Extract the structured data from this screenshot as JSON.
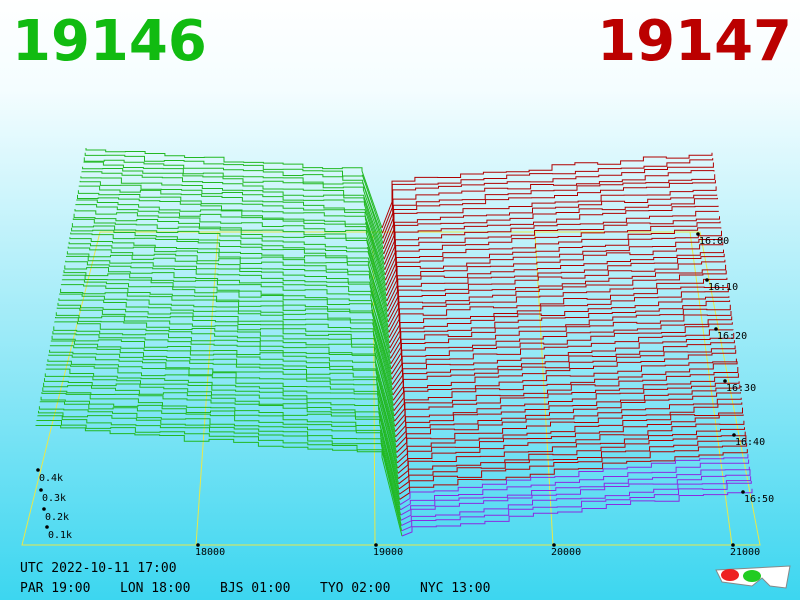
{
  "header": {
    "bid": "19146",
    "ask": "19147"
  },
  "price_axis": {
    "labels": [
      "18000",
      "19000",
      "20000",
      "21000"
    ]
  },
  "depth_axis": {
    "labels": [
      "0.4k",
      "0.3k",
      "0.2k",
      "0.1k"
    ]
  },
  "time_axis": {
    "labels": [
      "16:00",
      "16:10",
      "16:20",
      "16:30",
      "16:40",
      "16:50"
    ]
  },
  "footer": {
    "utc": "UTC 2022-10-11 17:00",
    "clocks": [
      "PAR 19:00",
      "LON 18:00",
      "BJS 01:00",
      "TYO 02:00",
      "NYC 13:00"
    ]
  }
}
